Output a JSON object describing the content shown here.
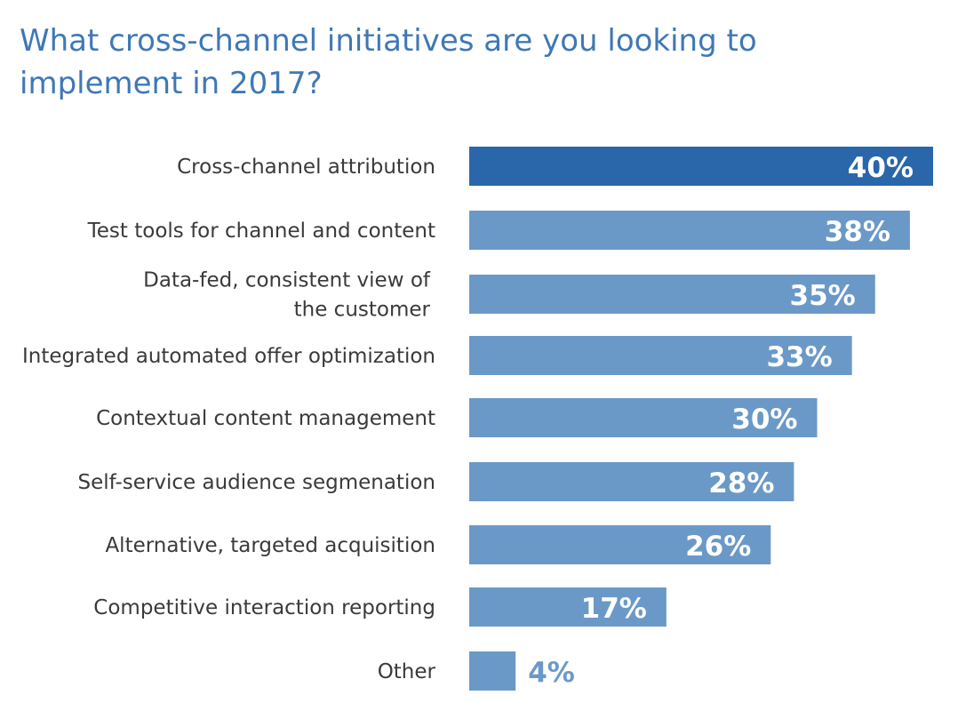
{
  "title_lines": [
    "What cross-channel initiatives are you looking to",
    "implement in 2017?"
  ],
  "colors": {
    "title": "#3f78b5",
    "highlight_bar": "#2a66aa",
    "bar": "#6a99c8",
    "value_inside": "#ffffff",
    "value_outside": "#6a99c8",
    "label": "#3a3a3a"
  },
  "chart_data": {
    "type": "bar",
    "orientation": "horizontal",
    "title": "What cross-channel initiatives are you looking to implement in 2017?",
    "categories": [
      [
        "Cross-channel attribution"
      ],
      [
        "Test tools for channel and content"
      ],
      [
        "Data-fed, consistent view of",
        "the customer"
      ],
      [
        "Integrated automated offer optimization"
      ],
      [
        "Contextual content management"
      ],
      [
        "Self-service audience segmenation"
      ],
      [
        "Alternative, targeted acquisition"
      ],
      [
        "Competitive interaction reporting"
      ],
      [
        "Other"
      ]
    ],
    "values": [
      40,
      38,
      35,
      33,
      30,
      28,
      26,
      17,
      4
    ],
    "value_labels": [
      "40%",
      "38%",
      "35%",
      "33%",
      "30%",
      "28%",
      "26%",
      "17%",
      "4%"
    ],
    "highlight_index": 0,
    "xlim": [
      0,
      40
    ],
    "grid": false,
    "legend": "none"
  }
}
